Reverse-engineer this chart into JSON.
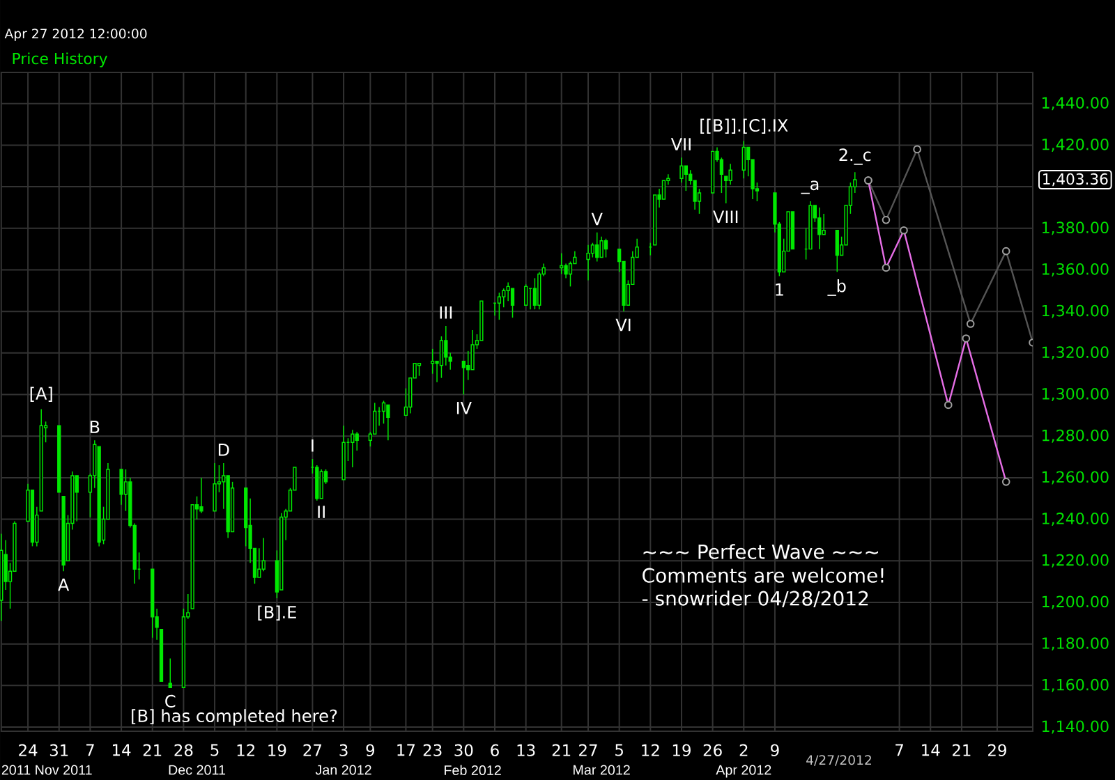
{
  "chart_data": {
    "type": "candlestick",
    "subtitle": "Apr 27 2012 12:00:00",
    "legend": "top left",
    "grid": true,
    "marker": "circle",
    "xlim": [
      "2011-10-18",
      "2012-06-06"
    ],
    "x2lim": [
      "2011-10-18",
      "2012-06-06"
    ],
    "ylim": [
      1138,
      1455
    ],
    "xticks": [
      {
        "value": "2011-10-24",
        "label": "24"
      },
      {
        "value": "2011-10-31",
        "label": "31"
      },
      {
        "value": "2011-11-07",
        "label": "7"
      },
      {
        "value": "2011-11-14",
        "label": "14"
      },
      {
        "value": "2011-11-21",
        "label": "21"
      },
      {
        "value": "2011-11-28",
        "label": "28"
      },
      {
        "value": "2011-12-05",
        "label": "5"
      },
      {
        "value": "2011-12-12",
        "label": "12"
      },
      {
        "value": "2011-12-19",
        "label": "19"
      },
      {
        "value": "2011-12-27",
        "label": "27"
      },
      {
        "value": "2012-01-03",
        "label": "3"
      },
      {
        "value": "2012-01-09",
        "label": "9"
      },
      {
        "value": "2012-01-17",
        "label": "17"
      },
      {
        "value": "2012-01-23",
        "label": "23"
      },
      {
        "value": "2012-01-30",
        "label": "30"
      },
      {
        "value": "2012-02-06",
        "label": "6"
      },
      {
        "value": "2012-02-13",
        "label": "13"
      },
      {
        "value": "2012-02-21",
        "label": "21"
      },
      {
        "value": "2012-02-27",
        "label": "27"
      },
      {
        "value": "2012-03-05",
        "label": "5"
      },
      {
        "value": "2012-03-12",
        "label": "12"
      },
      {
        "value": "2012-03-19",
        "label": "19"
      },
      {
        "value": "2012-03-26",
        "label": "26"
      },
      {
        "value": "2012-04-02",
        "label": "2"
      },
      {
        "value": "2012-04-09",
        "label": "9"
      },
      {
        "value": "2012-05-07",
        "label": "7"
      },
      {
        "value": "2012-05-14",
        "label": "14"
      },
      {
        "value": "2012-05-21",
        "label": "21"
      },
      {
        "value": "2012-05-29",
        "label": "29"
      }
    ],
    "x2ticks": [
      {
        "value": "2011-10-18",
        "label": "2011"
      },
      {
        "value": "2011-11-01",
        "label": "Nov 2011"
      },
      {
        "value": "2011-12-01",
        "label": "Dec 2011"
      },
      {
        "value": "2012-01-03",
        "label": "Jan 2012"
      },
      {
        "value": "2012-02-01",
        "label": "Feb 2012"
      },
      {
        "value": "2012-03-01",
        "label": "Mar 2012"
      },
      {
        "value": "2012-04-02",
        "label": "Apr 2012"
      }
    ],
    "yticks": [
      {
        "value": 1140,
        "label": "1,140.00"
      },
      {
        "value": 1160,
        "label": "1,160.00"
      },
      {
        "value": 1180,
        "label": "1,180.00"
      },
      {
        "value": 1200,
        "label": "1,200.00"
      },
      {
        "value": 1220,
        "label": "1,220.00"
      },
      {
        "value": 1240,
        "label": "1,240.00"
      },
      {
        "value": 1260,
        "label": "1,260.00"
      },
      {
        "value": 1280,
        "label": "1,280.00"
      },
      {
        "value": 1300,
        "label": "1,300.00"
      },
      {
        "value": 1320,
        "label": "1,320.00"
      },
      {
        "value": 1340,
        "label": "1,340.00"
      },
      {
        "value": 1360,
        "label": "1,360.00"
      },
      {
        "value": 1380,
        "label": "1,380.00"
      },
      {
        "value": 1400,
        "label": null
      },
      {
        "value": 1420,
        "label": "1,420.00"
      },
      {
        "value": 1440,
        "label": "1,440.00"
      }
    ],
    "series": [
      {
        "name": "Price History",
        "color": "#00e800",
        "x": [
          "2011-10-18",
          "2011-10-19",
          "2011-10-20",
          "2011-10-21",
          "2011-10-24",
          "2011-10-25",
          "2011-10-26",
          "2011-10-27",
          "2011-10-28",
          "2011-10-31",
          "2011-11-01",
          "2011-11-02",
          "2011-11-03",
          "2011-11-04",
          "2011-11-07",
          "2011-11-08",
          "2011-11-09",
          "2011-11-10",
          "2011-11-11",
          "2011-11-14",
          "2011-11-15",
          "2011-11-16",
          "2011-11-17",
          "2011-11-18",
          "2011-11-21",
          "2011-11-22",
          "2011-11-23",
          "2011-11-25",
          "2011-11-28",
          "2011-11-29",
          "2011-11-30",
          "2011-12-01",
          "2011-12-02",
          "2011-12-05",
          "2011-12-06",
          "2011-12-07",
          "2011-12-08",
          "2011-12-09",
          "2011-12-12",
          "2011-12-13",
          "2011-12-14",
          "2011-12-15",
          "2011-12-16",
          "2011-12-19",
          "2011-12-20",
          "2011-12-21",
          "2011-12-22",
          "2011-12-23",
          "2011-12-27",
          "2011-12-28",
          "2011-12-29",
          "2011-12-30",
          "2012-01-03",
          "2012-01-04",
          "2012-01-05",
          "2012-01-06",
          "2012-01-09",
          "2012-01-10",
          "2012-01-11",
          "2012-01-12",
          "2012-01-13",
          "2012-01-17",
          "2012-01-18",
          "2012-01-19",
          "2012-01-20",
          "2012-01-23",
          "2012-01-24",
          "2012-01-25",
          "2012-01-26",
          "2012-01-27",
          "2012-01-30",
          "2012-01-31",
          "2012-02-01",
          "2012-02-02",
          "2012-02-03",
          "2012-02-06",
          "2012-02-07",
          "2012-02-08",
          "2012-02-09",
          "2012-02-10",
          "2012-02-13",
          "2012-02-14",
          "2012-02-15",
          "2012-02-16",
          "2012-02-17",
          "2012-02-21",
          "2012-02-22",
          "2012-02-23",
          "2012-02-24",
          "2012-02-27",
          "2012-02-28",
          "2012-02-29",
          "2012-03-01",
          "2012-03-02",
          "2012-03-05",
          "2012-03-06",
          "2012-03-07",
          "2012-03-08",
          "2012-03-09",
          "2012-03-12",
          "2012-03-13",
          "2012-03-14",
          "2012-03-15",
          "2012-03-16",
          "2012-03-19",
          "2012-03-20",
          "2012-03-21",
          "2012-03-22",
          "2012-03-23",
          "2012-03-26",
          "2012-03-27",
          "2012-03-28",
          "2012-03-29",
          "2012-03-30",
          "2012-04-02",
          "2012-04-03",
          "2012-04-04",
          "2012-04-05",
          "2012-04-09",
          "2012-04-10",
          "2012-04-11",
          "2012-04-12",
          "2012-04-13",
          "2012-04-16",
          "2012-04-17",
          "2012-04-18",
          "2012-04-19",
          "2012-04-20",
          "2012-04-23",
          "2012-04-24",
          "2012-04-25",
          "2012-04-26",
          "2012-04-27"
        ],
        "ohlc": [
          [
            1201,
            1233,
            1191,
            1225
          ],
          [
            1223,
            1230,
            1206,
            1210
          ],
          [
            1210,
            1219,
            1197,
            1215
          ],
          [
            1215,
            1239,
            1215,
            1238
          ],
          [
            1239,
            1257,
            1239,
            1254
          ],
          [
            1254,
            1254,
            1227,
            1229
          ],
          [
            1229,
            1246,
            1227,
            1242
          ],
          [
            1244,
            1293,
            1244,
            1285
          ],
          [
            1284,
            1287,
            1277,
            1285
          ],
          [
            1285,
            1285,
            1253,
            1253
          ],
          [
            1251,
            1251,
            1215,
            1218
          ],
          [
            1220,
            1242,
            1220,
            1238
          ],
          [
            1238,
            1263,
            1235,
            1261
          ],
          [
            1261,
            1261,
            1239,
            1253
          ],
          [
            1253,
            1262,
            1241,
            1261
          ],
          [
            1261,
            1278,
            1255,
            1276
          ],
          [
            1275,
            1275,
            1227,
            1229
          ],
          [
            1230,
            1246,
            1228,
            1240
          ],
          [
            1240,
            1267,
            1240,
            1264
          ],
          [
            1264,
            1264,
            1247,
            1252
          ],
          [
            1252,
            1264,
            1244,
            1258
          ],
          [
            1258,
            1260,
            1236,
            1237
          ],
          [
            1237,
            1238,
            1209,
            1216
          ],
          [
            1216,
            1224,
            1211,
            1216
          ],
          [
            1216,
            1216,
            1183,
            1193
          ],
          [
            1193,
            1197,
            1182,
            1188
          ],
          [
            1187,
            1187,
            1162,
            1162
          ],
          [
            1161,
            1173,
            1159,
            1159
          ],
          [
            1159,
            1197,
            1159,
            1193
          ],
          [
            1193,
            1204,
            1192,
            1195
          ],
          [
            1197,
            1247,
            1197,
            1247
          ],
          [
            1247,
            1251,
            1240,
            1245
          ],
          [
            1246,
            1260,
            1243,
            1244
          ],
          [
            1244,
            1267,
            1244,
            1257
          ],
          [
            1257,
            1266,
            1253,
            1258
          ],
          [
            1258,
            1267,
            1245,
            1261
          ],
          [
            1261,
            1261,
            1231,
            1234
          ],
          [
            1234,
            1258,
            1234,
            1255
          ],
          [
            1255,
            1255,
            1227,
            1236
          ],
          [
            1237,
            1250,
            1219,
            1226
          ],
          [
            1226,
            1226,
            1209,
            1212
          ],
          [
            1212,
            1226,
            1212,
            1216
          ],
          [
            1216,
            1231,
            1215,
            1220
          ],
          [
            1220,
            1225,
            1202,
            1205
          ],
          [
            1206,
            1243,
            1206,
            1241
          ],
          [
            1241,
            1245,
            1230,
            1244
          ],
          [
            1244,
            1255,
            1244,
            1254
          ],
          [
            1254,
            1265,
            1254,
            1265
          ],
          [
            1265,
            1269,
            1262,
            1265
          ],
          [
            1265,
            1266,
            1249,
            1250
          ],
          [
            1250,
            1264,
            1250,
            1263
          ],
          [
            1263,
            1264,
            1257,
            1258
          ],
          [
            1259,
            1285,
            1259,
            1277
          ],
          [
            1277,
            1279,
            1268,
            1277
          ],
          [
            1277,
            1283,
            1265,
            1281
          ],
          [
            1281,
            1282,
            1273,
            1278
          ],
          [
            1278,
            1282,
            1275,
            1281
          ],
          [
            1281,
            1296,
            1281,
            1292
          ],
          [
            1292,
            1294,
            1285,
            1292
          ],
          [
            1292,
            1297,
            1286,
            1296
          ],
          [
            1295,
            1295,
            1278,
            1289
          ],
          [
            1290,
            1303,
            1290,
            1294
          ],
          [
            1294,
            1308,
            1291,
            1308
          ],
          [
            1308,
            1315,
            1308,
            1315
          ],
          [
            1314,
            1315,
            1309,
            1315
          ],
          [
            1315,
            1322,
            1310,
            1316
          ],
          [
            1316,
            1316,
            1306,
            1315
          ],
          [
            1314,
            1328,
            1308,
            1326
          ],
          [
            1326,
            1333,
            1314,
            1318
          ],
          [
            1318,
            1320,
            1312,
            1316
          ],
          [
            1316,
            1316,
            1300,
            1313
          ],
          [
            1314,
            1321,
            1307,
            1312
          ],
          [
            1312,
            1331,
            1312,
            1324
          ],
          [
            1324,
            1329,
            1322,
            1326
          ],
          [
            1326,
            1345,
            1326,
            1345
          ],
          [
            1344,
            1344,
            1338,
            1344
          ],
          [
            1344,
            1349,
            1336,
            1347
          ],
          [
            1347,
            1351,
            1342,
            1350
          ],
          [
            1350,
            1354,
            1345,
            1352
          ],
          [
            1351,
            1351,
            1337,
            1343
          ],
          [
            1343,
            1353,
            1343,
            1352
          ],
          [
            1351,
            1351,
            1341,
            1351
          ],
          [
            1351,
            1356,
            1341,
            1343
          ],
          [
            1343,
            1359,
            1341,
            1358
          ],
          [
            1358,
            1363,
            1357,
            1361
          ],
          [
            1361,
            1368,
            1358,
            1362
          ],
          [
            1362,
            1363,
            1356,
            1358
          ],
          [
            1358,
            1364,
            1352,
            1363
          ],
          [
            1363,
            1369,
            1363,
            1366
          ],
          [
            1365,
            1372,
            1355,
            1368
          ],
          [
            1368,
            1373,
            1366,
            1372
          ],
          [
            1372,
            1378,
            1364,
            1366
          ],
          [
            1366,
            1376,
            1366,
            1374
          ],
          [
            1374,
            1375,
            1366,
            1370
          ],
          [
            1370,
            1370,
            1359,
            1364
          ],
          [
            1364,
            1364,
            1340,
            1343
          ],
          [
            1343,
            1355,
            1343,
            1353
          ],
          [
            1353,
            1369,
            1353,
            1366
          ],
          [
            1366,
            1375,
            1366,
            1371
          ],
          [
            1371,
            1373,
            1367,
            1371
          ],
          [
            1372,
            1396,
            1372,
            1396
          ],
          [
            1396,
            1399,
            1390,
            1394
          ],
          [
            1394,
            1403,
            1394,
            1403
          ],
          [
            1403,
            1406,
            1401,
            1404
          ],
          [
            1404,
            1414,
            1402,
            1410
          ],
          [
            1410,
            1410,
            1398,
            1406
          ],
          [
            1406,
            1408,
            1401,
            1403
          ],
          [
            1403,
            1403,
            1389,
            1393
          ],
          [
            1393,
            1399,
            1387,
            1397
          ],
          [
            1397,
            1417,
            1397,
            1417
          ],
          [
            1417,
            1419,
            1412,
            1413
          ],
          [
            1413,
            1414,
            1397,
            1406
          ],
          [
            1405,
            1405,
            1392,
            1403
          ],
          [
            1403,
            1411,
            1401,
            1408
          ],
          [
            1408,
            1422,
            1404,
            1419
          ],
          [
            1419,
            1419,
            1405,
            1413
          ],
          [
            1413,
            1413,
            1394,
            1399
          ],
          [
            1399,
            1402,
            1393,
            1398
          ],
          [
            1397,
            1397,
            1378,
            1382
          ],
          [
            1382,
            1383,
            1357,
            1359
          ],
          [
            1359,
            1375,
            1359,
            1369
          ],
          [
            1369,
            1388,
            1369,
            1388
          ],
          [
            1388,
            1388,
            1370,
            1370
          ],
          [
            1370,
            1380,
            1365,
            1370
          ],
          [
            1370,
            1393,
            1370,
            1391
          ],
          [
            1391,
            1391,
            1383,
            1385
          ],
          [
            1385,
            1390,
            1370,
            1377
          ],
          [
            1377,
            1387,
            1377,
            1379
          ],
          [
            1379,
            1379,
            1359,
            1367
          ],
          [
            1367,
            1376,
            1367,
            1372
          ],
          [
            1372,
            1391,
            1372,
            1391
          ],
          [
            1391,
            1402,
            1387,
            1400
          ],
          [
            1400,
            1407,
            1397,
            1403.36
          ]
        ],
        "value_labels": [
          null,
          null,
          null,
          null,
          null,
          null,
          null,
          null,
          null,
          null,
          null,
          null,
          null,
          null,
          null,
          null,
          null,
          null,
          null,
          null,
          null,
          null,
          null,
          null,
          null,
          null,
          null,
          null,
          null,
          null,
          null,
          null,
          null,
          null,
          null,
          null,
          null,
          null,
          null,
          null,
          null,
          null,
          null,
          null,
          null,
          null,
          null,
          null,
          null,
          null,
          null,
          null,
          null,
          null,
          null,
          null,
          null,
          null,
          null,
          null,
          null,
          null,
          null,
          null,
          null,
          null,
          null,
          null,
          null,
          null,
          null,
          null,
          null,
          null,
          null,
          null,
          null,
          null,
          null,
          null,
          null,
          null,
          null,
          null,
          null,
          null,
          null,
          null,
          null,
          null,
          null,
          null,
          null,
          null,
          null,
          null,
          null,
          null,
          null,
          null,
          null,
          null,
          null,
          null,
          null,
          null,
          null,
          null,
          null,
          null,
          null,
          null,
          null,
          null,
          null,
          null,
          null,
          null,
          null,
          null,
          null,
          null,
          null,
          null,
          null,
          null,
          null,
          null,
          null,
          null,
          null,
          null,
          "1,403.36"
        ]
      },
      {
        "type": "line",
        "color": "#555555",
        "x": [
          "2012-04-30",
          "2012-05-04",
          "2012-05-11",
          "2012-05-23",
          "2012-05-31",
          "2012-06-06"
        ],
        "values": [
          1403,
          1384,
          1418,
          1334,
          1369,
          1325
        ]
      },
      {
        "type": "line",
        "color": "#e66ee6",
        "x": [
          "2012-04-30",
          "2012-05-04",
          "2012-05-08",
          "2012-05-18",
          "2012-05-22",
          "2012-05-31"
        ],
        "values": [
          1403,
          1361,
          1379,
          1295,
          1327,
          1258
        ]
      }
    ],
    "annotations": [
      {
        "text": "[A]",
        "x": "2011-10-27",
        "y": 1293
      },
      {
        "text": "A",
        "x": "2011-11-01",
        "y": 1215
      },
      {
        "text": "B",
        "x": "2011-11-08",
        "y": 1278
      },
      {
        "text": "C",
        "x": "2011-11-25",
        "y": 1159
      },
      {
        "text": "D",
        "x": "2011-12-07",
        "y": 1267
      },
      {
        "text": "[B].E",
        "x": "2011-12-19",
        "y": 1202
      },
      {
        "text": "I",
        "x": "2011-12-27",
        "y": 1269
      },
      {
        "text": "II",
        "x": "2011-12-29",
        "y": 1250
      },
      {
        "text": "III",
        "x": "2012-01-26",
        "y": 1333
      },
      {
        "text": "IV",
        "x": "2012-01-30",
        "y": 1300
      },
      {
        "text": "V",
        "x": "2012-02-29",
        "y": 1378
      },
      {
        "text": "VI",
        "x": "2012-03-06",
        "y": 1340
      },
      {
        "text": "VII",
        "x": "2012-03-19",
        "y": 1414
      },
      {
        "text": "[[B]].[C].IX",
        "x": "2012-04-02",
        "y": 1422
      },
      {
        "text": "VIII",
        "x": "2012-03-29",
        "y": 1392
      },
      {
        "text": "1",
        "x": "2012-04-10",
        "y": 1357
      },
      {
        "text": "_a",
        "x": "2012-04-17",
        "y": 1393
      },
      {
        "text": "_b",
        "x": "2012-04-23",
        "y": 1359
      },
      {
        "text": "2._c",
        "x": "2012-04-27",
        "y": 1407
      },
      "[B] has completed here?",
      "4/27/2012",
      "~~~ Perfect Wave ~~~",
      "Comments are welcome!",
      "- snowrider  04/28/2012"
    ]
  }
}
